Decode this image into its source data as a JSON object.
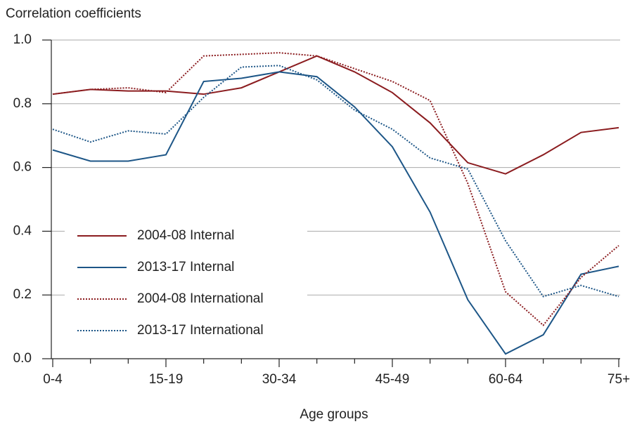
{
  "chart_data": {
    "type": "line",
    "y_axis_label": "Correlation coefficients",
    "x_axis_label": "Age groups",
    "categories": [
      "0-4",
      null,
      null,
      "15-19",
      null,
      null,
      "30-34",
      null,
      null,
      "45-49",
      null,
      null,
      "60-64",
      null,
      null,
      "75+"
    ],
    "ylim": [
      0,
      1
    ],
    "yticks": [
      {
        "value": 0,
        "label": "0.0"
      },
      0.2,
      0.4,
      0.6,
      0.8,
      {
        "value": 1,
        "label": "1.0"
      }
    ],
    "grid": true,
    "legend": "center-left",
    "series": [
      {
        "name": "2004-08 Internal",
        "color": "#8b1c1f",
        "style": "solid",
        "values": [
          0.83,
          0.845,
          0.84,
          0.84,
          0.83,
          0.85,
          0.9,
          0.95,
          0.9,
          0.835,
          0.74,
          0.615,
          0.58,
          0.64,
          0.71,
          0.725
        ]
      },
      {
        "name": "2013-17 Internal",
        "color": "#1d5687",
        "style": "solid",
        "values": [
          0.655,
          0.62,
          0.62,
          0.64,
          0.87,
          0.88,
          0.9,
          0.885,
          0.79,
          0.665,
          0.46,
          0.185,
          0.015,
          0.075,
          0.265,
          0.29
        ]
      },
      {
        "name": "2004-08 International",
        "color": "#8b1c1f",
        "style": "dotted",
        "values": [
          0.83,
          0.845,
          0.85,
          0.835,
          0.95,
          0.955,
          0.96,
          0.95,
          0.91,
          0.87,
          0.81,
          0.55,
          0.21,
          0.105,
          0.255,
          0.355
        ]
      },
      {
        "name": "2013-17 International",
        "color": "#1d5687",
        "style": "dotted",
        "values": [
          0.72,
          0.68,
          0.715,
          0.705,
          0.82,
          0.915,
          0.92,
          0.875,
          0.78,
          0.72,
          0.63,
          0.595,
          0.37,
          0.195,
          0.23,
          0.195
        ]
      }
    ]
  }
}
